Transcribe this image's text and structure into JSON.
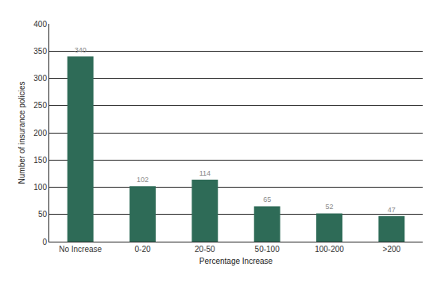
{
  "chart_data": {
    "type": "bar",
    "categories": [
      "No Increase",
      "0-20",
      "20-50",
      "50-100",
      "100-200",
      ">200"
    ],
    "values": [
      340,
      102,
      114,
      65,
      52,
      47
    ],
    "color": "#2e6b57",
    "x_label": "Percentage Increase",
    "y_label": "Number of insurance policies",
    "ylim": [
      0,
      400
    ],
    "yticks": [
      0,
      50,
      100,
      150,
      200,
      250,
      300,
      350,
      400
    ],
    "grid": true,
    "data_labels": true
  }
}
